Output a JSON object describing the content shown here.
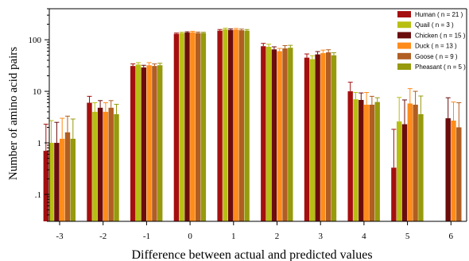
{
  "chart_data": {
    "type": "bar",
    "xlabel": "Difference between actual and predicted values",
    "ylabel": "Number of amino acid pairs",
    "yscale": "log",
    "ylim": [
      0.03,
      400
    ],
    "yticks": [
      0.1,
      1,
      10,
      100
    ],
    "ytick_labels": [
      ".1",
      "1",
      "10",
      "100"
    ],
    "categories": [
      "-3",
      "-2",
      "-1",
      "0",
      "1",
      "2",
      "3",
      "4",
      "5",
      "6"
    ],
    "legend_position": "top-right",
    "series": [
      {
        "name": "Human ( n = 21 )",
        "color": "#a50f0f",
        "values": [
          0.7,
          6.0,
          31,
          130,
          150,
          75,
          45,
          10,
          0.33,
          null
        ],
        "errors": [
          1.6,
          2.0,
          3,
          5,
          8,
          10,
          8,
          5,
          1.5,
          null
        ]
      },
      {
        "name": "Quail ( n = 3 )",
        "color": "#b7bf12",
        "values": [
          1.0,
          4.0,
          33,
          135,
          160,
          73,
          42,
          7,
          2.6,
          null
        ],
        "errors": [
          1.7,
          2.0,
          3,
          5,
          8,
          9,
          7,
          2.5,
          5.0,
          null
        ]
      },
      {
        "name": "Chicken ( n = 15 )",
        "color": "#6b0d0d",
        "values": [
          1.0,
          4.8,
          29,
          138,
          155,
          65,
          52,
          6.8,
          2.3,
          3.0
        ],
        "errors": [
          1.5,
          1.8,
          3,
          5,
          8,
          8,
          7,
          2.5,
          4.5,
          4.5
        ]
      },
      {
        "name": "Duck ( n = 13 )",
        "color": "#ff8c1a",
        "values": [
          1.2,
          4.0,
          32,
          140,
          158,
          60,
          55,
          5.5,
          5.8,
          2.7
        ],
        "errors": [
          1.8,
          2.0,
          4,
          6,
          8,
          8,
          8,
          4,
          5.5,
          3.5
        ]
      },
      {
        "name": "Goose ( n = 9 )",
        "color": "#b05e22",
        "values": [
          1.6,
          4.8,
          31,
          135,
          153,
          68,
          57,
          5.5,
          5.5,
          2.0
        ],
        "errors": [
          1.7,
          1.8,
          3,
          6,
          8,
          9,
          7,
          2.5,
          4.5,
          4.0
        ]
      },
      {
        "name": "Pheasant ( n = 5 )",
        "color": "#969a0c",
        "values": [
          1.2,
          3.6,
          32,
          135,
          150,
          70,
          50,
          6.2,
          3.6,
          null
        ],
        "errors": [
          1.7,
          2.0,
          3,
          5,
          8,
          8,
          6,
          1.3,
          4.5,
          null
        ]
      }
    ]
  }
}
